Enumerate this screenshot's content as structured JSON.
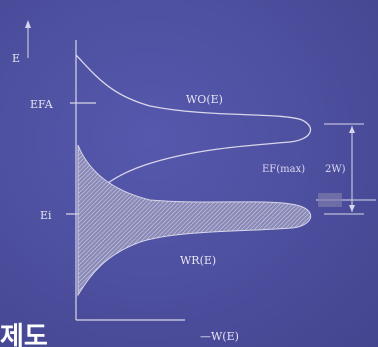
{
  "diagram": {
    "labels": {
      "e_axis": "E",
      "e_fa": "EFA",
      "e_i": "Ei",
      "w_o": "WO(E)",
      "w_r": "WR(E)",
      "e_fmax": "EF(max)",
      "two_w": "2W)",
      "w_axis": "—W(E)",
      "corner_text": "제도"
    }
  }
}
